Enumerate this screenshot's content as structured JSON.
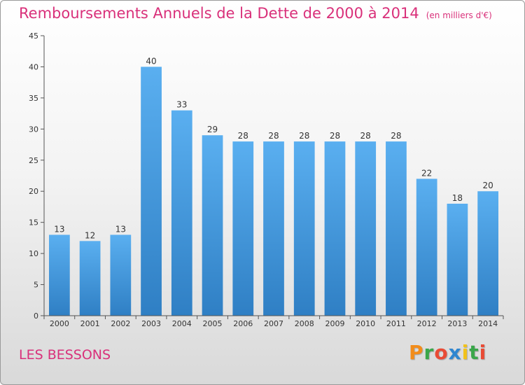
{
  "chart_data": {
    "type": "bar",
    "title": "Remboursements Annuels de la Dette de 2000 à 2014",
    "subtitle": "(en milliers d'€)",
    "categories": [
      "2000",
      "2001",
      "2002",
      "2003",
      "2004",
      "2005",
      "2006",
      "2007",
      "2008",
      "2009",
      "2010",
      "2011",
      "2012",
      "2013",
      "2014"
    ],
    "values": [
      13,
      12,
      13,
      40,
      33,
      29,
      28,
      28,
      28,
      28,
      28,
      28,
      22,
      18,
      20
    ],
    "ylim": [
      0,
      45
    ],
    "yticks": [
      0,
      5,
      10,
      15,
      20,
      25,
      30,
      35,
      40,
      45
    ],
    "grid": false,
    "colors": {
      "bar_top": "#5aaff0",
      "bar_bottom": "#2f7fc4",
      "title": "#d9307a"
    }
  },
  "footer": {
    "commune": "LES BESSONS",
    "logo": "Proxiti"
  }
}
